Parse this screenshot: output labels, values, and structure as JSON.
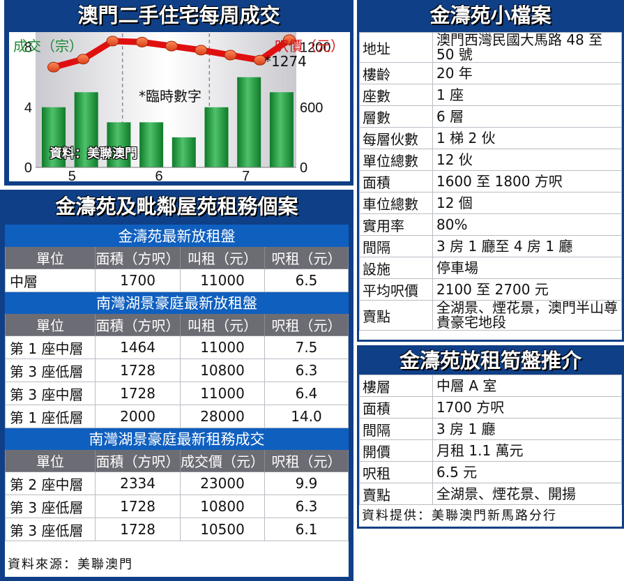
{
  "chart_panel": {
    "title": "澳門二手住宅每周成交",
    "left_axis_label": "成交（宗）",
    "right_axis_label": "呎價（元）",
    "source_note": "資料：美聯澳門",
    "provisional_note": "*臨時數字",
    "latest_value_label": "*1274"
  },
  "chart_data": {
    "type": "bar",
    "title": "澳門二手住宅每周成交",
    "x_tick_labels": [
      "5",
      "6",
      "7"
    ],
    "bar_values": [
      4,
      5,
      3,
      3,
      2,
      4,
      6,
      5
    ],
    "line_values": [
      1000,
      1080,
      1260,
      1250,
      1210,
      1170,
      1120,
      1070,
      1274
    ],
    "series": [
      {
        "name": "成交（宗）",
        "type": "bar",
        "axis": "left",
        "values": [
          4,
          5,
          3,
          3,
          2,
          4,
          6,
          5
        ]
      },
      {
        "name": "呎價（元）",
        "type": "line",
        "axis": "right",
        "values": [
          1000,
          1080,
          1260,
          1250,
          1210,
          1170,
          1120,
          1070,
          1274
        ]
      }
    ],
    "left_ticks": [
      "0",
      "4",
      "8"
    ],
    "right_ticks": [
      "0",
      "600",
      "1200"
    ],
    "ylim_left": [
      0,
      9
    ],
    "ylim_right": [
      0,
      1350
    ],
    "colors": {
      "bar": "#1a9a3a",
      "line": "#e01010",
      "points": "#e8501e"
    }
  },
  "profile": {
    "title": "金濤苑小檔案",
    "rows": [
      {
        "label": "地址",
        "value": "澳門西灣民國大馬路 48 至 50 號"
      },
      {
        "label": "樓齡",
        "value": "20 年"
      },
      {
        "label": "座數",
        "value": "1 座"
      },
      {
        "label": "層數",
        "value": "6 層"
      },
      {
        "label": "每層伙數",
        "value": "1 梯 2 伙"
      },
      {
        "label": "單位總數",
        "value": "12 伙"
      },
      {
        "label": "面積",
        "value": "1600 至 1800 方呎"
      },
      {
        "label": "車位總數",
        "value": "12 個"
      },
      {
        "label": "實用率",
        "value": "80%"
      },
      {
        "label": "間隔",
        "value": "3 房 1 廳至 4 房 1 廳"
      },
      {
        "label": "設施",
        "value": "停車場"
      },
      {
        "label": "平均呎價",
        "value": "2100 至 2700 元"
      },
      {
        "label": "賣點",
        "value": "全湖景、煙花景，澳門半山尊貴豪宅地段"
      }
    ]
  },
  "rental_cases": {
    "title": "金濤苑及毗鄰屋苑租務個案",
    "sections": [
      {
        "heading": "金濤苑最新放租盤",
        "columns": [
          "單位",
          "面積（方呎）",
          "叫租（元）",
          "呎租（元）"
        ],
        "rows": [
          [
            "中層",
            "1700",
            "11000",
            "6.5"
          ]
        ]
      },
      {
        "heading": "南灣湖景豪庭最新放租盤",
        "columns": [
          "單位",
          "面積（方呎）",
          "叫租（元）",
          "呎租（元）"
        ],
        "rows": [
          [
            "第 1 座中層",
            "1464",
            "11000",
            "7.5"
          ],
          [
            "第 3 座低層",
            "1728",
            "10800",
            "6.3"
          ],
          [
            "第 3 座中層",
            "1728",
            "11000",
            "6.4"
          ],
          [
            "第 1 座低層",
            "2000",
            "28000",
            "14.0"
          ]
        ]
      },
      {
        "heading": "南灣湖景豪庭最新租務成交",
        "columns": [
          "單位",
          "面積（方呎）",
          "成交價（元）",
          "呎租（元）"
        ],
        "rows": [
          [
            "第 2 座中層",
            "2334",
            "23000",
            "9.9"
          ],
          [
            "第 3 座低層",
            "1728",
            "10800",
            "6.3"
          ],
          [
            "第 3 座低層",
            "1728",
            "10500",
            "6.1"
          ]
        ]
      }
    ],
    "source": "資料來源：美聯澳門"
  },
  "recommendation": {
    "title": "金濤苑放租筍盤推介",
    "rows": [
      {
        "label": "樓層",
        "value": "中層 A 室"
      },
      {
        "label": "面積",
        "value": "1700 方呎"
      },
      {
        "label": "間隔",
        "value": "3 房 1 廳"
      },
      {
        "label": "開價",
        "value": "月租 1.1 萬元"
      },
      {
        "label": "呎租",
        "value": "6.5 元"
      },
      {
        "label": "賣點",
        "value": "全湖景、煙花景、開揚"
      }
    ],
    "source": "資料提供：美聯澳門新馬路分行"
  }
}
